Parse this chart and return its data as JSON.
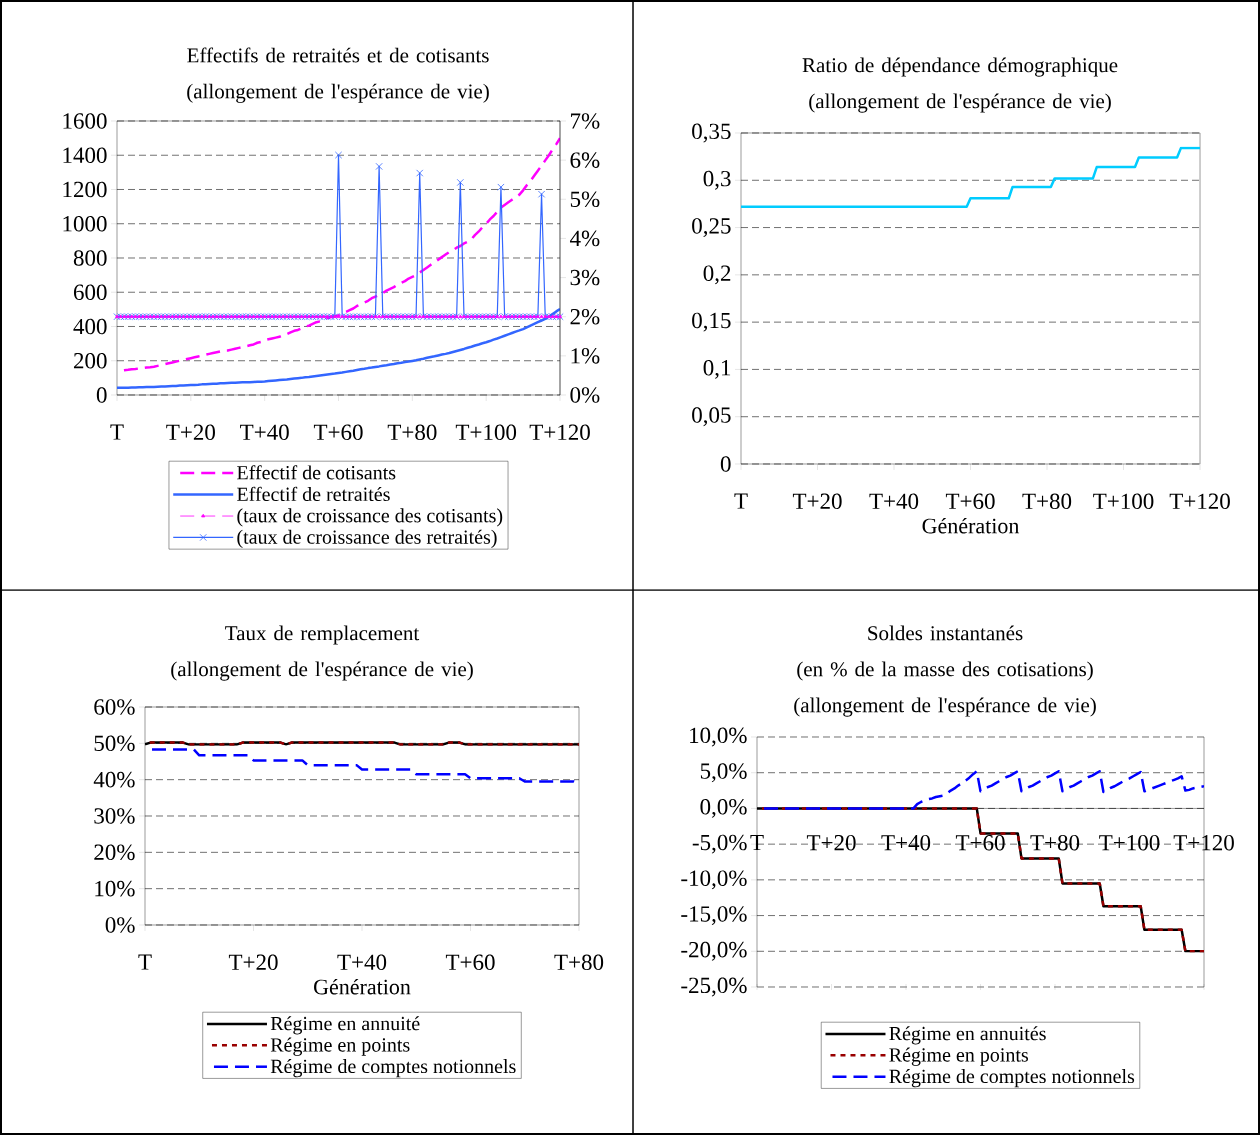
{
  "chart_data": [
    {
      "type": "line",
      "title": "Effectifs de retraités et de cotisants",
      "subtitle": "(allongement de l'espérance de vie)",
      "categories": [
        "T",
        null,
        null,
        null,
        null,
        null,
        null,
        null,
        null,
        null,
        null,
        null,
        null,
        null,
        null,
        null,
        null,
        null,
        null,
        null,
        "T+20",
        null,
        null,
        null,
        null,
        null,
        null,
        null,
        null,
        null,
        null,
        null,
        null,
        null,
        null,
        null,
        null,
        null,
        null,
        null,
        "T+40",
        null,
        null,
        null,
        null,
        null,
        null,
        null,
        null,
        null,
        null,
        null,
        null,
        null,
        null,
        null,
        null,
        null,
        null,
        null,
        "T+60",
        null,
        null,
        null,
        null,
        null,
        null,
        null,
        null,
        null,
        null,
        null,
        null,
        null,
        null,
        null,
        null,
        null,
        null,
        null,
        "T+80",
        null,
        null,
        null,
        null,
        null,
        null,
        null,
        null,
        null,
        null,
        null,
        null,
        null,
        null,
        null,
        null,
        null,
        null,
        null,
        "T+100",
        null,
        null,
        null,
        null,
        null,
        null,
        null,
        null,
        null,
        null,
        null,
        null,
        null,
        null,
        null,
        null,
        null,
        null,
        null,
        "T+120"
      ],
      "ylim": [
        0,
        1600
      ],
      "yticks": [
        0,
        200,
        400,
        600,
        800,
        1000,
        1200,
        1400,
        1600
      ],
      "y2lim": [
        0,
        0.07
      ],
      "y2ticks": [
        {
          "value": 0,
          "label": "0%"
        },
        {
          "value": 0.01,
          "label": "1%"
        },
        {
          "value": 0.02,
          "label": "2%"
        },
        {
          "value": 0.03,
          "label": "3%"
        },
        {
          "value": 0.04,
          "label": "4%"
        },
        {
          "value": 0.05,
          "label": "5%"
        },
        {
          "value": 0.06,
          "label": "6%"
        },
        {
          "value": 0.07,
          "label": "7%"
        }
      ],
      "grid": "y",
      "legend": "bottom",
      "series": [
        {
          "name": "Effectif de cotisants",
          "color": "#ff00ff",
          "line_style": "dashed",
          "values": [
            140,
            142,
            145,
            147,
            150,
            152,
            155,
            157,
            160,
            162,
            165,
            170,
            175,
            180,
            185,
            190,
            195,
            200,
            205,
            210,
            215,
            220,
            225,
            230,
            235,
            240,
            245,
            250,
            255,
            260,
            260,
            265,
            270,
            275,
            280,
            285,
            290,
            295,
            305,
            310,
            320,
            325,
            330,
            335,
            340,
            350,
            355,
            365,
            375,
            380,
            390,
            400,
            405,
            415,
            425,
            430,
            440,
            450,
            455,
            460,
            465,
            475,
            485,
            495,
            505,
            520,
            530,
            540,
            550,
            565,
            575,
            585,
            595,
            610,
            620,
            630,
            645,
            655,
            665,
            680,
            690,
            700,
            715,
            730,
            745,
            760,
            775,
            790,
            805,
            820,
            835,
            845,
            860,
            870,
            885,
            895,
            910,
            935,
            955,
            980,
            1000,
            1025,
            1045,
            1070,
            1095,
            1110,
            1125,
            1140,
            1155,
            1170,
            1195,
            1225,
            1250,
            1280,
            1310,
            1340,
            1370,
            1400,
            1435,
            1465,
            1500
          ]
        },
        {
          "name": "Effectif de retraités",
          "color": "#3366ff",
          "line_style": "solid",
          "values": [
            42,
            42,
            43,
            43,
            44,
            44,
            45,
            45,
            46,
            46,
            47,
            48,
            49,
            50,
            51,
            52,
            53,
            55,
            56,
            57,
            58,
            59,
            60,
            62,
            63,
            64,
            65,
            66,
            68,
            69,
            70,
            71,
            72,
            73,
            74,
            75,
            75,
            76,
            77,
            78,
            79,
            81,
            83,
            85,
            87,
            89,
            91,
            94,
            96,
            98,
            100,
            103,
            105,
            108,
            111,
            114,
            117,
            120,
            123,
            125,
            128,
            131,
            135,
            139,
            142,
            146,
            150,
            153,
            157,
            160,
            164,
            167,
            171,
            174,
            178,
            181,
            185,
            188,
            192,
            195,
            199,
            203,
            208,
            212,
            217,
            222,
            226,
            231,
            236,
            240,
            245,
            251,
            257,
            263,
            269,
            276,
            282,
            289,
            295,
            302,
            308,
            315,
            323,
            330,
            338,
            346,
            354,
            362,
            370,
            377,
            385,
            395,
            405,
            415,
            425,
            435,
            444,
            458,
            473,
            488,
            502
          ]
        },
        {
          "name": "(taux de croissance des cotisants)",
          "color": "#ff00ff",
          "line_style": "dashed",
          "marker": "triangle",
          "axis": "y2",
          "values": [
            0.02,
            0.02,
            0.02,
            0.02,
            0.02,
            0.02,
            0.02,
            0.02,
            0.02,
            0.02,
            0.02,
            0.02,
            0.02,
            0.02,
            0.02,
            0.02,
            0.02,
            0.02,
            0.02,
            0.02,
            0.02,
            0.02,
            0.02,
            0.02,
            0.02,
            0.02,
            0.02,
            0.02,
            0.02,
            0.02,
            0.02,
            0.02,
            0.02,
            0.02,
            0.02,
            0.02,
            0.02,
            0.02,
            0.02,
            0.02,
            0.02,
            0.02,
            0.02,
            0.02,
            0.02,
            0.02,
            0.02,
            0.02,
            0.02,
            0.02,
            0.02,
            0.02,
            0.02,
            0.02,
            0.02,
            0.02,
            0.02,
            0.02,
            0.02,
            0.02,
            0.02,
            0.02,
            0.02,
            0.02,
            0.02,
            0.02,
            0.02,
            0.02,
            0.02,
            0.02,
            0.02,
            0.02,
            0.02,
            0.02,
            0.02,
            0.02,
            0.02,
            0.02,
            0.02,
            0.02,
            0.02,
            0.02,
            0.02,
            0.02,
            0.02,
            0.02,
            0.02,
            0.02,
            0.02,
            0.02,
            0.02,
            0.02,
            0.02,
            0.02,
            0.02,
            0.02,
            0.02,
            0.02,
            0.02,
            0.02,
            0.02,
            0.02,
            0.02,
            0.02,
            0.02,
            0.02,
            0.02,
            0.02,
            0.02,
            0.02,
            0.02,
            0.02,
            0.02,
            0.02,
            0.02,
            0.02,
            0.02,
            0.02,
            0.02,
            0.02,
            0.02
          ]
        },
        {
          "name": "(taux de croissance des retraités)",
          "color": "#3366ff",
          "line_style": "solid",
          "marker": "cross",
          "axis": "y2",
          "values": [
            0.02,
            0.02,
            0.02,
            0.02,
            0.02,
            0.02,
            0.02,
            0.02,
            0.02,
            0.02,
            0.02,
            0.02,
            0.02,
            0.02,
            0.02,
            0.02,
            0.02,
            0.02,
            0.02,
            0.02,
            0.02,
            0.02,
            0.02,
            0.02,
            0.02,
            0.02,
            0.02,
            0.02,
            0.02,
            0.02,
            0.02,
            0.02,
            0.02,
            0.02,
            0.02,
            0.02,
            0.02,
            0.02,
            0.02,
            0.02,
            0.02,
            0.02,
            0.02,
            0.02,
            0.02,
            0.02,
            0.02,
            0.02,
            0.02,
            0.02,
            0.02,
            0.02,
            0.02,
            0.02,
            0.02,
            0.02,
            0.02,
            0.02,
            0.02,
            0.02,
            0.0613,
            0.02,
            0.02,
            0.02,
            0.02,
            0.02,
            0.02,
            0.02,
            0.02,
            0.02,
            0.02,
            0.0584,
            0.02,
            0.02,
            0.02,
            0.02,
            0.02,
            0.02,
            0.02,
            0.02,
            0.02,
            0.02,
            0.0567,
            0.02,
            0.02,
            0.02,
            0.02,
            0.02,
            0.02,
            0.02,
            0.02,
            0.02,
            0.02,
            0.0543,
            0.02,
            0.02,
            0.02,
            0.02,
            0.02,
            0.02,
            0.02,
            0.02,
            0.02,
            0.02,
            0.0531,
            0.02,
            0.02,
            0.02,
            0.02,
            0.02,
            0.02,
            0.02,
            0.02,
            0.02,
            0.02,
            0.0513,
            0.02,
            0.02,
            0.02,
            0.02,
            0.02
          ]
        }
      ]
    },
    {
      "type": "line",
      "title": "Ratio de dépendance démographique",
      "subtitle": "(allongement de l'espérance de vie)",
      "xlabel": "Génération",
      "categories": [
        "T",
        null,
        null,
        null,
        null,
        null,
        null,
        null,
        null,
        null,
        null,
        null,
        null,
        null,
        null,
        null,
        null,
        null,
        null,
        null,
        "T+20",
        null,
        null,
        null,
        null,
        null,
        null,
        null,
        null,
        null,
        null,
        null,
        null,
        null,
        null,
        null,
        null,
        null,
        null,
        null,
        "T+40",
        null,
        null,
        null,
        null,
        null,
        null,
        null,
        null,
        null,
        null,
        null,
        null,
        null,
        null,
        null,
        null,
        null,
        null,
        null,
        "T+60",
        null,
        null,
        null,
        null,
        null,
        null,
        null,
        null,
        null,
        null,
        null,
        null,
        null,
        null,
        null,
        null,
        null,
        null,
        null,
        "T+80",
        null,
        null,
        null,
        null,
        null,
        null,
        null,
        null,
        null,
        null,
        null,
        null,
        null,
        null,
        null,
        null,
        null,
        null,
        null,
        "T+100",
        null,
        null,
        null,
        null,
        null,
        null,
        null,
        null,
        null,
        null,
        null,
        null,
        null,
        null,
        null,
        null,
        null,
        null,
        null,
        "T+120"
      ],
      "ylim": [
        0,
        0.35
      ],
      "yticks": [
        0,
        {
          "value": 0.05,
          "label": "0,05"
        },
        {
          "value": 0.1,
          "label": "0,1"
        },
        {
          "value": 0.15,
          "label": "0,15"
        },
        {
          "value": 0.2,
          "label": "0,2"
        },
        {
          "value": 0.25,
          "label": "0,25"
        },
        {
          "value": 0.3,
          "label": "0,3"
        },
        {
          "value": 0.35,
          "label": "0,35"
        }
      ],
      "grid": "y",
      "series": [
        {
          "color": "#00ccff",
          "values": [
            0.272,
            0.272,
            0.272,
            0.272,
            0.272,
            0.272,
            0.272,
            0.272,
            0.272,
            0.272,
            0.272,
            0.272,
            0.272,
            0.272,
            0.272,
            0.272,
            0.272,
            0.272,
            0.272,
            0.272,
            0.272,
            0.272,
            0.272,
            0.272,
            0.272,
            0.272,
            0.272,
            0.272,
            0.272,
            0.272,
            0.272,
            0.272,
            0.272,
            0.272,
            0.272,
            0.272,
            0.272,
            0.272,
            0.272,
            0.272,
            0.272,
            0.272,
            0.272,
            0.272,
            0.272,
            0.272,
            0.272,
            0.272,
            0.272,
            0.272,
            0.272,
            0.272,
            0.272,
            0.272,
            0.272,
            0.272,
            0.272,
            0.272,
            0.272,
            0.272,
            0.281,
            0.281,
            0.281,
            0.281,
            0.281,
            0.281,
            0.281,
            0.281,
            0.281,
            0.281,
            0.281,
            0.293,
            0.293,
            0.293,
            0.293,
            0.293,
            0.293,
            0.293,
            0.293,
            0.293,
            0.293,
            0.293,
            0.302,
            0.302,
            0.302,
            0.302,
            0.302,
            0.302,
            0.302,
            0.302,
            0.302,
            0.302,
            0.302,
            0.314,
            0.314,
            0.314,
            0.314,
            0.314,
            0.314,
            0.314,
            0.314,
            0.314,
            0.314,
            0.314,
            0.324,
            0.324,
            0.324,
            0.324,
            0.324,
            0.324,
            0.324,
            0.324,
            0.324,
            0.324,
            0.324,
            0.334,
            0.334,
            0.334,
            0.334,
            0.334,
            0.334
          ]
        }
      ]
    },
    {
      "type": "line",
      "title": "Taux de remplacement",
      "subtitle": "(allongement de l'espérance de vie)",
      "xlabel": "Génération",
      "categories": [
        "T",
        null,
        null,
        null,
        null,
        null,
        null,
        null,
        null,
        null,
        null,
        null,
        null,
        null,
        null,
        null,
        null,
        null,
        null,
        null,
        "T+20",
        null,
        null,
        null,
        null,
        null,
        null,
        null,
        null,
        null,
        null,
        null,
        null,
        null,
        null,
        null,
        null,
        null,
        null,
        null,
        "T+40",
        null,
        null,
        null,
        null,
        null,
        null,
        null,
        null,
        null,
        null,
        null,
        null,
        null,
        null,
        null,
        null,
        null,
        null,
        null,
        "T+60",
        null,
        null,
        null,
        null,
        null,
        null,
        null,
        null,
        null,
        null,
        null,
        null,
        null,
        null,
        null,
        null,
        null,
        null,
        null,
        "T+80"
      ],
      "ylim": [
        0,
        0.6
      ],
      "yticks": [
        {
          "value": 0,
          "label": "0%"
        },
        {
          "value": 0.1,
          "label": "10%"
        },
        {
          "value": 0.2,
          "label": "20%"
        },
        {
          "value": 0.3,
          "label": "30%"
        },
        {
          "value": 0.4,
          "label": "40%"
        },
        {
          "value": 0.5,
          "label": "50%"
        },
        {
          "value": 0.6,
          "label": "60%"
        }
      ],
      "grid": "y",
      "legend": "bottom",
      "series": [
        {
          "name": "Régime en annuité",
          "color": "#000000",
          "line_style": "solid",
          "values": [
            0.497,
            0.502,
            0.502,
            0.502,
            0.502,
            0.502,
            0.502,
            0.502,
            0.497,
            0.497,
            0.497,
            0.497,
            0.497,
            0.497,
            0.497,
            0.497,
            0.497,
            0.497,
            0.502,
            0.502,
            0.502,
            0.502,
            0.502,
            0.502,
            0.502,
            0.502,
            0.497,
            0.502,
            0.502,
            0.502,
            0.502,
            0.502,
            0.502,
            0.502,
            0.502,
            0.502,
            0.502,
            0.502,
            0.502,
            0.502,
            0.502,
            0.502,
            0.502,
            0.502,
            0.502,
            0.502,
            0.502,
            0.497,
            0.497,
            0.497,
            0.497,
            0.497,
            0.497,
            0.497,
            0.497,
            0.497,
            0.502,
            0.502,
            0.502,
            0.497,
            0.497,
            0.497,
            0.497,
            0.497,
            0.497,
            0.497,
            0.497,
            0.497,
            0.497,
            0.497,
            0.497,
            0.497,
            0.497,
            0.497,
            0.497,
            0.497,
            0.497,
            0.497,
            0.497,
            0.497,
            0.497
          ]
        },
        {
          "name": "Régime en points",
          "color": "#990000",
          "line_style": "dotted",
          "values": [
            0.497,
            0.502,
            0.502,
            0.502,
            0.502,
            0.502,
            0.502,
            0.502,
            0.497,
            0.497,
            0.497,
            0.497,
            0.497,
            0.497,
            0.497,
            0.497,
            0.497,
            0.497,
            0.502,
            0.502,
            0.502,
            0.502,
            0.502,
            0.502,
            0.502,
            0.502,
            0.497,
            0.502,
            0.502,
            0.502,
            0.502,
            0.502,
            0.502,
            0.502,
            0.502,
            0.502,
            0.502,
            0.502,
            0.502,
            0.502,
            0.502,
            0.502,
            0.502,
            0.502,
            0.502,
            0.502,
            0.502,
            0.497,
            0.497,
            0.497,
            0.497,
            0.497,
            0.497,
            0.497,
            0.497,
            0.497,
            0.502,
            0.502,
            0.502,
            0.497,
            0.497,
            0.497,
            0.497,
            0.497,
            0.497,
            0.497,
            0.497,
            0.497,
            0.497,
            0.497,
            0.497,
            0.497,
            0.497,
            0.497,
            0.497,
            0.497,
            0.497,
            0.497,
            0.497,
            0.497,
            0.497
          ]
        },
        {
          "name": "Régime de comptes notionnels",
          "color": "#0000ff",
          "line_style": "dashed",
          "values": [
            0.483,
            0.483,
            0.483,
            0.483,
            0.483,
            0.483,
            0.483,
            0.483,
            0.483,
            0.483,
            0.467,
            0.467,
            0.467,
            0.467,
            0.467,
            0.467,
            0.467,
            0.467,
            0.467,
            0.467,
            0.453,
            0.453,
            0.453,
            0.453,
            0.453,
            0.453,
            0.453,
            0.453,
            0.453,
            0.453,
            0.44,
            0.44,
            0.44,
            0.44,
            0.44,
            0.44,
            0.44,
            0.44,
            0.44,
            0.44,
            0.428,
            0.428,
            0.428,
            0.428,
            0.428,
            0.428,
            0.428,
            0.428,
            0.428,
            0.428,
            0.415,
            0.415,
            0.415,
            0.415,
            0.415,
            0.415,
            0.415,
            0.415,
            0.415,
            0.415,
            0.404,
            0.404,
            0.404,
            0.404,
            0.404,
            0.404,
            0.404,
            0.404,
            0.404,
            0.404,
            0.395,
            0.395,
            0.395,
            0.395,
            0.395,
            0.395,
            0.395,
            0.395,
            0.395,
            0.395,
            0.389
          ]
        }
      ]
    },
    {
      "type": "line",
      "title": "Soldes instantanés",
      "subtitle": "(en % de la masse des cotisations) (allongement de l'espérance de vie)",
      "categories": [
        "T",
        null,
        null,
        null,
        null,
        null,
        null,
        null,
        null,
        null,
        null,
        null,
        null,
        null,
        null,
        null,
        null,
        null,
        null,
        null,
        "T+20",
        null,
        null,
        null,
        null,
        null,
        null,
        null,
        null,
        null,
        null,
        null,
        null,
        null,
        null,
        null,
        null,
        null,
        null,
        null,
        "T+40",
        null,
        null,
        null,
        null,
        null,
        null,
        null,
        null,
        null,
        null,
        null,
        null,
        null,
        null,
        null,
        null,
        null,
        null,
        null,
        "T+60",
        null,
        null,
        null,
        null,
        null,
        null,
        null,
        null,
        null,
        null,
        null,
        null,
        null,
        null,
        null,
        null,
        null,
        null,
        null,
        "T+80",
        null,
        null,
        null,
        null,
        null,
        null,
        null,
        null,
        null,
        null,
        null,
        null,
        null,
        null,
        null,
        null,
        null,
        null,
        null,
        "T+100",
        null,
        null,
        null,
        null,
        null,
        null,
        null,
        null,
        null,
        null,
        null,
        null,
        null,
        null,
        null,
        null,
        null,
        null,
        null,
        "T+120"
      ],
      "ylim": [
        -0.25,
        0.1
      ],
      "yticks": [
        {
          "value": -0.25,
          "label": "-25,0%"
        },
        {
          "value": -0.2,
          "label": "-20,0%"
        },
        {
          "value": -0.15,
          "label": "-15,0%"
        },
        {
          "value": -0.1,
          "label": "-10,0%"
        },
        {
          "value": -0.05,
          "label": "-5,0%"
        },
        {
          "value": 0,
          "label": "0,0%"
        },
        {
          "value": 0.05,
          "label": "5,0%"
        },
        {
          "value": 0.1,
          "label": "10,0%"
        }
      ],
      "grid": "y",
      "legend": "bottom",
      "series": [
        {
          "name": "Régime en annuités",
          "color": "#000000",
          "line_style": "solid",
          "values": [
            0,
            0,
            0,
            0,
            0,
            0,
            0,
            0,
            0,
            0,
            0,
            0,
            0,
            0,
            0,
            0,
            0,
            0,
            0,
            0,
            0,
            0,
            0,
            0,
            0,
            0,
            0,
            0,
            0,
            0,
            0,
            0,
            0,
            0,
            0,
            0,
            0,
            0,
            0,
            0,
            0,
            0,
            0,
            0,
            0,
            0,
            0,
            0,
            0,
            0,
            0,
            0,
            0,
            0,
            0,
            0,
            0,
            0,
            0,
            0,
            -0.035,
            -0.035,
            -0.035,
            -0.035,
            -0.035,
            -0.035,
            -0.035,
            -0.035,
            -0.035,
            -0.035,
            -0.035,
            -0.07,
            -0.07,
            -0.07,
            -0.07,
            -0.07,
            -0.07,
            -0.07,
            -0.07,
            -0.07,
            -0.07,
            -0.07,
            -0.105,
            -0.105,
            -0.105,
            -0.105,
            -0.105,
            -0.105,
            -0.105,
            -0.105,
            -0.105,
            -0.105,
            -0.105,
            -0.137,
            -0.137,
            -0.137,
            -0.137,
            -0.137,
            -0.137,
            -0.137,
            -0.137,
            -0.137,
            -0.137,
            -0.137,
            -0.17,
            -0.17,
            -0.17,
            -0.17,
            -0.17,
            -0.17,
            -0.17,
            -0.17,
            -0.17,
            -0.17,
            -0.17,
            -0.2,
            -0.2,
            -0.2,
            -0.2,
            -0.2,
            -0.2
          ]
        },
        {
          "name": "Régime en points",
          "color": "#990000",
          "line_style": "dotted",
          "values": [
            0,
            0,
            0,
            0,
            0,
            0,
            0,
            0,
            0,
            0,
            0,
            0,
            0,
            0,
            0,
            0,
            0,
            0,
            0,
            0,
            0,
            0,
            0,
            0,
            0,
            0,
            0,
            0,
            0,
            0,
            0,
            0,
            0,
            0,
            0,
            0,
            0,
            0,
            0,
            0,
            0,
            0,
            0,
            0,
            0,
            0,
            0,
            0,
            0,
            0,
            0,
            0,
            0,
            0,
            0,
            0,
            0,
            0,
            0,
            0,
            -0.035,
            -0.035,
            -0.035,
            -0.035,
            -0.035,
            -0.035,
            -0.035,
            -0.035,
            -0.035,
            -0.035,
            -0.035,
            -0.07,
            -0.07,
            -0.07,
            -0.07,
            -0.07,
            -0.07,
            -0.07,
            -0.07,
            -0.07,
            -0.07,
            -0.07,
            -0.105,
            -0.105,
            -0.105,
            -0.105,
            -0.105,
            -0.105,
            -0.105,
            -0.105,
            -0.105,
            -0.105,
            -0.105,
            -0.137,
            -0.137,
            -0.137,
            -0.137,
            -0.137,
            -0.137,
            -0.137,
            -0.137,
            -0.137,
            -0.137,
            -0.137,
            -0.17,
            -0.17,
            -0.17,
            -0.17,
            -0.17,
            -0.17,
            -0.17,
            -0.17,
            -0.17,
            -0.17,
            -0.17,
            -0.2,
            -0.2,
            -0.2,
            -0.2,
            -0.2,
            -0.2
          ]
        },
        {
          "name": "Régime de comptes notionnels",
          "color": "#0000ff",
          "line_style": "dashed",
          "values": [
            0,
            0,
            0,
            0,
            0,
            0,
            0,
            0,
            0,
            0,
            0,
            0,
            0,
            0,
            0,
            0,
            0,
            0,
            0,
            0,
            0,
            0,
            0,
            0,
            0,
            0,
            0,
            0,
            0,
            0,
            0,
            0,
            0,
            0,
            0,
            0,
            0,
            0,
            0,
            0,
            0,
            0,
            0,
            0.006,
            0.009,
            0.011,
            0.013,
            0.014,
            0.016,
            0.017,
            0.018,
            0.021,
            0.025,
            0.028,
            0.032,
            0.035,
            0.039,
            0.043,
            0.048,
            0.052,
            0.024,
            0.027,
            0.03,
            0.032,
            0.035,
            0.038,
            0.041,
            0.044,
            0.046,
            0.049,
            0.052,
            0.024,
            0.027,
            0.03,
            0.032,
            0.035,
            0.038,
            0.041,
            0.044,
            0.046,
            0.049,
            0.052,
            0.024,
            0.027,
            0.03,
            0.032,
            0.035,
            0.038,
            0.041,
            0.044,
            0.046,
            0.049,
            0.052,
            0.023,
            0.026,
            0.029,
            0.031,
            0.034,
            0.037,
            0.04,
            0.042,
            0.045,
            0.048,
            0.051,
            0.024,
            0.026,
            0.028,
            0.03,
            0.032,
            0.034,
            0.036,
            0.038,
            0.04,
            0.042,
            0.045,
            0.025,
            0.026,
            0.028,
            0.029,
            0.03,
            0.031
          ]
        }
      ]
    }
  ]
}
